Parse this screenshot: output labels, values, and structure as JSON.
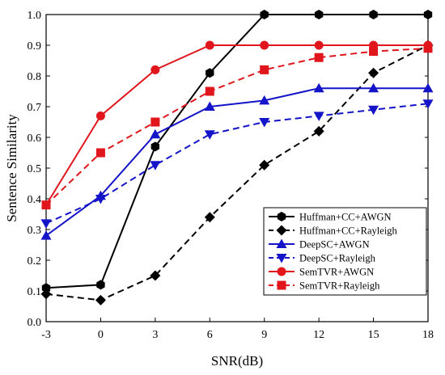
{
  "chart_data": {
    "type": "line",
    "title": "",
    "xlabel": "SNR(dB)",
    "ylabel": "Sentence Similarity",
    "x": [
      -3,
      0,
      3,
      6,
      9,
      12,
      15,
      18
    ],
    "x_tick_labels": [
      "-3",
      "0",
      "3",
      "6",
      "9",
      "12",
      "15",
      "18"
    ],
    "xlim": [
      -3,
      18
    ],
    "ylim": [
      0,
      1
    ],
    "y_ticks": [
      "0.0",
      "0.1",
      "0.2",
      "0.3",
      "0.4",
      "0.5",
      "0.6",
      "0.7",
      "0.8",
      "0.9",
      "1.0"
    ],
    "grid": false,
    "legend_position": "bottom-right",
    "series": [
      {
        "name": "Huffman+CC+AWGN",
        "color": "#000000",
        "dash": "solid",
        "marker": "hexagon",
        "values": [
          0.11,
          0.12,
          0.57,
          0.81,
          1.0,
          1.0,
          1.0,
          1.0
        ]
      },
      {
        "name": "Huffman+CC+Rayleigh",
        "color": "#000000",
        "dash": "dashed",
        "marker": "diamond",
        "values": [
          0.09,
          0.07,
          0.15,
          0.34,
          0.51,
          0.62,
          0.81,
          0.9
        ]
      },
      {
        "name": "DeepSC+AWGN",
        "color": "#1414c8",
        "dash": "solid",
        "marker": "triangle-up",
        "values": [
          0.28,
          0.41,
          0.61,
          0.7,
          0.72,
          0.76,
          0.76,
          0.76
        ]
      },
      {
        "name": "DeepSC+Rayleigh",
        "color": "#1414c8",
        "dash": "dashed",
        "marker": "triangle-down",
        "values": [
          0.32,
          0.4,
          0.51,
          0.61,
          0.65,
          0.67,
          0.69,
          0.71
        ]
      },
      {
        "name": "SemTVR+AWGN",
        "color": "#e0161c",
        "dash": "solid",
        "marker": "circle",
        "values": [
          0.38,
          0.67,
          0.82,
          0.9,
          0.9,
          0.9,
          0.9,
          0.9
        ]
      },
      {
        "name": "SemTVR+Rayleigh",
        "color": "#e0161c",
        "dash": "dashed",
        "marker": "square",
        "values": [
          0.38,
          0.55,
          0.65,
          0.75,
          0.82,
          0.86,
          0.88,
          0.89
        ]
      }
    ]
  }
}
